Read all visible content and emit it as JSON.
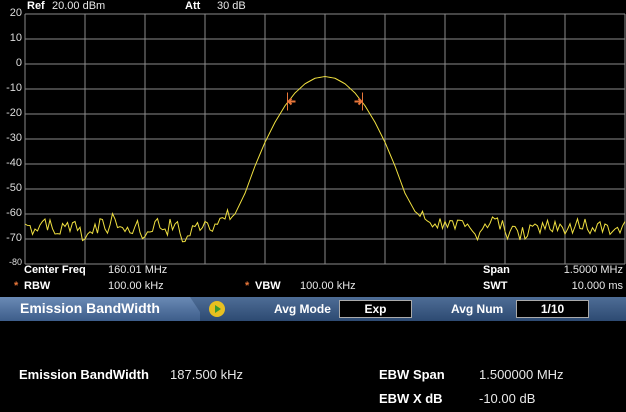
{
  "header": {
    "ref_label": "Ref",
    "ref_value": "20.00 dBm",
    "att_label": "Att",
    "att_value": "30 dB"
  },
  "info": {
    "center_freq_label": "Center Freq",
    "center_freq_value": "160.01 MHz",
    "span_label": "Span",
    "span_value": "1.5000 MHz",
    "rbw_label": "RBW",
    "rbw_value": "100.00 kHz",
    "vbw_label": "VBW",
    "vbw_value": "100.00 kHz",
    "swt_label": "SWT",
    "swt_value": "10.000 ms",
    "asterisk": "*"
  },
  "menu_bar": {
    "title": "Emission BandWidth",
    "avg_mode_label": "Avg Mode",
    "avg_mode_value": "Exp",
    "avg_num_label": "Avg Num",
    "avg_num_value": "1/10"
  },
  "results": {
    "ebw_label": "Emission BandWidth",
    "ebw_value": "187.500 kHz",
    "span_label": "EBW Span",
    "span_value": "1.500000 MHz",
    "xdb_label": "EBW X dB",
    "xdb_value": "-10.00 dB"
  },
  "colors": {
    "trace": "#f0e040",
    "marker": "#e8763a",
    "grid": "#8a8a8a",
    "menu_bar": "#3d5d8a"
  },
  "chart_data": {
    "type": "line",
    "ylim": [
      -80,
      20
    ],
    "y_ticks": [
      "20",
      "10",
      "0",
      "-10",
      "-20",
      "-30",
      "-40",
      "-50",
      "-60",
      "-70",
      "-80"
    ],
    "xlim": [
      159.26,
      160.76
    ],
    "grid": true,
    "x_start": 159.26,
    "x_step": 0.025,
    "values": [
      -64,
      -66,
      -62,
      -68,
      -65,
      -63,
      -70,
      -64,
      -66,
      -62,
      -67,
      -65,
      -69,
      -63,
      -66,
      -64,
      -71,
      -65,
      -63,
      -64,
      -62,
      -60,
      -51.7,
      -40.8,
      -31.3,
      -23.3,
      -16.7,
      -11.6,
      -7.9,
      -5.7,
      -5,
      -5.7,
      -7.9,
      -11.6,
      -16.7,
      -23.3,
      -31.3,
      -40.8,
      -51.7,
      -59,
      -62,
      -64,
      -63,
      -66,
      -65,
      -68,
      -64,
      -62,
      -67,
      -65,
      -70,
      -64,
      -66,
      -63,
      -68,
      -65,
      -62,
      -67,
      -64,
      -66,
      -63
    ],
    "markers": [
      {
        "x": 159.91625,
        "y": -15
      },
      {
        "x": 160.10375,
        "y": -15
      }
    ]
  }
}
